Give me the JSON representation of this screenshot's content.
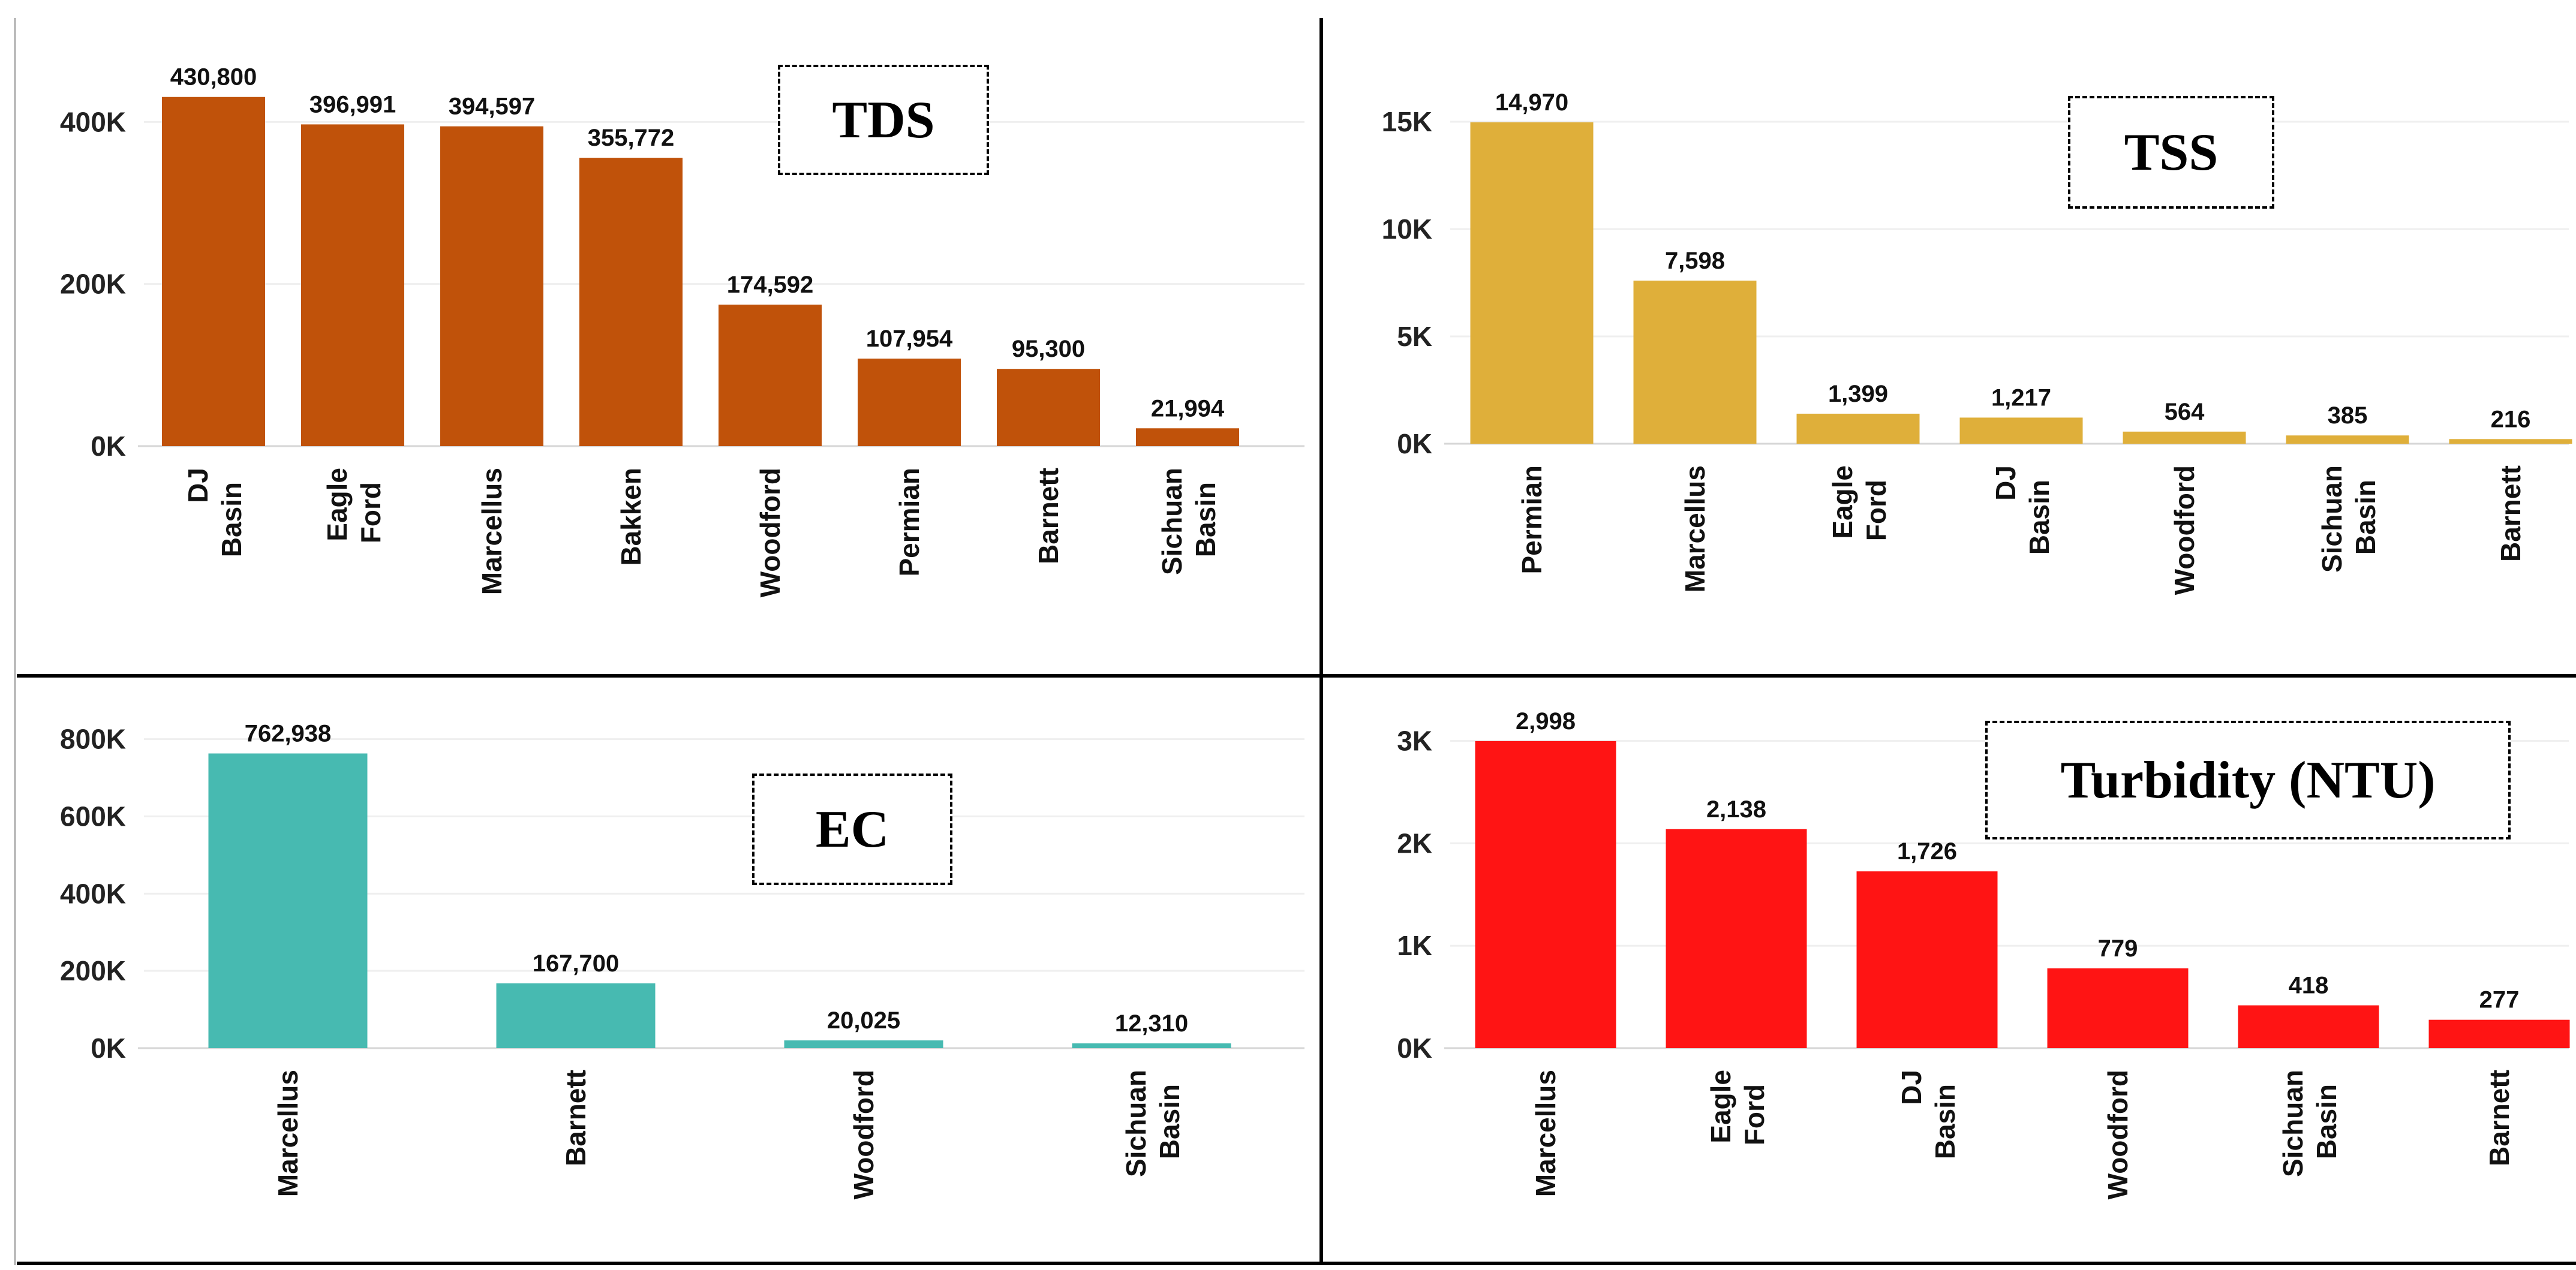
{
  "chart_data": [
    {
      "id": "tds",
      "type": "bar",
      "title": "TDS",
      "categories": [
        "DJ Basin",
        "Eagle Ford",
        "Marcellus",
        "Bakken",
        "Woodford",
        "Permian",
        "Barnett",
        "Sichuan Basin"
      ],
      "values": [
        430800,
        396991,
        394597,
        355772,
        174592,
        107954,
        95300,
        21994
      ],
      "value_labels": [
        "430,800",
        "396,991",
        "394,597",
        "355,772",
        "174,592",
        "107,954",
        "95,300",
        "21,994"
      ],
      "yticks": [
        0,
        200000,
        400000
      ],
      "ytick_labels": [
        "0K",
        "200K",
        "400K"
      ],
      "ylim": [
        0,
        475000
      ],
      "color": "#C0520A",
      "grid": true,
      "xlabel": "",
      "ylabel": ""
    },
    {
      "id": "tss",
      "type": "bar",
      "title": "TSS",
      "categories": [
        "Permian",
        "Marcellus",
        "Eagle Ford",
        "DJ Basin",
        "Woodford",
        "Sichuan Basin",
        "Barnett"
      ],
      "values": [
        14970,
        7598,
        1399,
        1217,
        564,
        385,
        216
      ],
      "value_labels": [
        "14,970",
        "7,598",
        "1,399",
        "1,217",
        "564",
        "385",
        "216"
      ],
      "yticks": [
        0,
        5000,
        10000,
        15000
      ],
      "ytick_labels": [
        "0K",
        "5K",
        "10K",
        "15K"
      ],
      "ylim": [
        0,
        16200
      ],
      "color": "#DFAF3A",
      "grid": true,
      "xlabel": "",
      "ylabel": ""
    },
    {
      "id": "ec",
      "type": "bar",
      "title": "EC",
      "categories": [
        "Marcellus",
        "Barnett",
        "Woodford",
        "Sichuan Basin"
      ],
      "values": [
        762938,
        167700,
        20025,
        12310
      ],
      "value_labels": [
        "762,938",
        "167,700",
        "20,025",
        "12,310"
      ],
      "yticks": [
        0,
        200000,
        400000,
        600000,
        800000
      ],
      "ytick_labels": [
        "0K",
        "200K",
        "400K",
        "600K",
        "800K"
      ],
      "ylim": [
        0,
        860000
      ],
      "color": "#47BAB1",
      "grid": true,
      "xlabel": "",
      "ylabel": ""
    },
    {
      "id": "turbidity",
      "type": "bar",
      "title": "Turbidity (NTU)",
      "categories": [
        "Marcellus",
        "Eagle Ford",
        "DJ Basin",
        "Woodford",
        "Sichuan Basin",
        "Barnett"
      ],
      "values": [
        2998,
        2138,
        1726,
        779,
        418,
        277
      ],
      "value_labels": [
        "2,998",
        "2,138",
        "1,726",
        "779",
        "418",
        "277"
      ],
      "yticks": [
        0,
        1000,
        2000,
        3000
      ],
      "ytick_labels": [
        "0K",
        "1K",
        "2K",
        "3K"
      ],
      "ylim": [
        0,
        3220
      ],
      "color": "#FF1414",
      "grid": true,
      "xlabel": "",
      "ylabel": ""
    }
  ]
}
